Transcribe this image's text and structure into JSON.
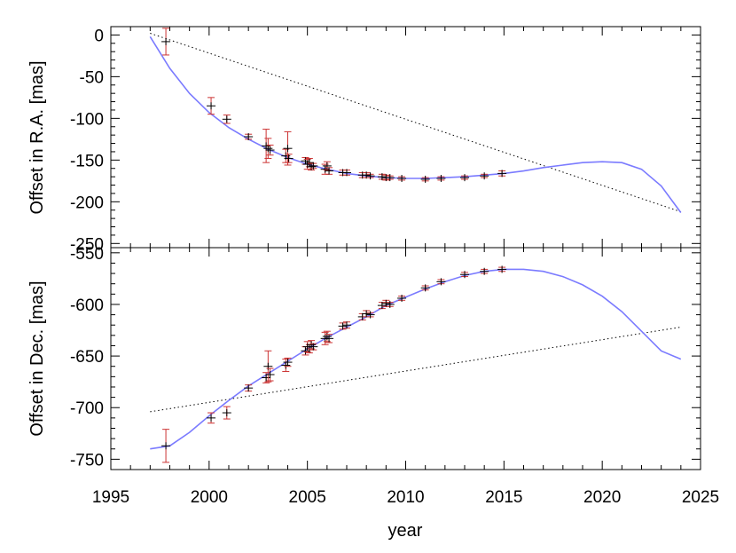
{
  "chart_data": [
    {
      "type": "scatter",
      "panel": "top",
      "title": "",
      "xlabel": "",
      "ylabel": "Offset in R.A. [mas]",
      "xlim": [
        1995,
        2025
      ],
      "ylim": [
        -255,
        10
      ],
      "yticks": [
        0,
        -50,
        -100,
        -150,
        -200,
        -250
      ],
      "ytick_labels": [
        "0",
        "-50",
        "-100",
        "-150",
        "-200",
        "-250"
      ],
      "colors": {
        "model": "#7b7bff",
        "points": "#cc3333",
        "markers": "#000000",
        "linear": "#000000"
      },
      "model_curve": {
        "x": [
          1997,
          1998,
          1999,
          2000,
          2001,
          2002,
          2003,
          2004,
          2005,
          2006,
          2007,
          2008,
          2009,
          2010,
          2011,
          2012,
          2013,
          2014,
          2015,
          2016,
          2017,
          2018,
          2019,
          2020,
          2021,
          2022,
          2023,
          2024
        ],
        "y": [
          -2,
          -40,
          -70,
          -93,
          -111,
          -125,
          -137,
          -147,
          -155,
          -161,
          -166,
          -169,
          -171,
          -172,
          -172,
          -171,
          -170,
          -168,
          -166,
          -163,
          -159,
          -156,
          -153,
          -152,
          -153,
          -161,
          -181,
          -213
        ]
      },
      "linear_trend": {
        "x": [
          1997,
          2024
        ],
        "y": [
          2,
          -212
        ]
      },
      "points": [
        {
          "x": 1997.8,
          "y": -8,
          "err": 16
        },
        {
          "x": 2000.1,
          "y": -85,
          "err": 10
        },
        {
          "x": 2000.9,
          "y": -101,
          "err": 5
        },
        {
          "x": 2002.0,
          "y": -122,
          "err": 3
        },
        {
          "x": 2002.9,
          "y": -133,
          "err": 20
        },
        {
          "x": 2003.0,
          "y": -136,
          "err": 12
        },
        {
          "x": 2003.1,
          "y": -138,
          "err": 6
        },
        {
          "x": 2003.9,
          "y": -145,
          "err": 8
        },
        {
          "x": 2004.0,
          "y": -136,
          "err": 20
        },
        {
          "x": 2004.05,
          "y": -148,
          "err": 5
        },
        {
          "x": 2004.9,
          "y": -151,
          "err": 4
        },
        {
          "x": 2005.0,
          "y": -155,
          "err": 6
        },
        {
          "x": 2005.1,
          "y": -153,
          "err": 5
        },
        {
          "x": 2005.2,
          "y": -158,
          "err": 4
        },
        {
          "x": 2005.3,
          "y": -157,
          "err": 3
        },
        {
          "x": 2005.9,
          "y": -161,
          "err": 6
        },
        {
          "x": 2006.0,
          "y": -157,
          "err": 5
        },
        {
          "x": 2006.1,
          "y": -163,
          "err": 4
        },
        {
          "x": 2006.8,
          "y": -165,
          "err": 3
        },
        {
          "x": 2007.0,
          "y": -165,
          "err": 3
        },
        {
          "x": 2007.8,
          "y": -168,
          "err": 3
        },
        {
          "x": 2008.0,
          "y": -168,
          "err": 3
        },
        {
          "x": 2008.2,
          "y": -169,
          "err": 2
        },
        {
          "x": 2008.8,
          "y": -170,
          "err": 3
        },
        {
          "x": 2009.0,
          "y": -171,
          "err": 3
        },
        {
          "x": 2009.2,
          "y": -171,
          "err": 2
        },
        {
          "x": 2009.8,
          "y": -172,
          "err": 2
        },
        {
          "x": 2011.0,
          "y": -173,
          "err": 2
        },
        {
          "x": 2011.8,
          "y": -172,
          "err": 2
        },
        {
          "x": 2013.0,
          "y": -171,
          "err": 2
        },
        {
          "x": 2014.0,
          "y": -169,
          "err": 2
        },
        {
          "x": 2014.9,
          "y": -166,
          "err": 3
        }
      ]
    },
    {
      "type": "scatter",
      "panel": "bottom",
      "title": "",
      "xlabel": "year",
      "ylabel": "Offset in Dec. [mas]",
      "xlim": [
        1995,
        2025
      ],
      "ylim": [
        -760,
        -545
      ],
      "yticks": [
        -550,
        -600,
        -650,
        -700,
        -750
      ],
      "ytick_labels": [
        "-550",
        "-600",
        "-650",
        "-700",
        "-750"
      ],
      "xticks": [
        1995,
        2000,
        2005,
        2010,
        2015,
        2020,
        2025
      ],
      "xtick_labels": [
        "1995",
        "2000",
        "2005",
        "2010",
        "2015",
        "2020",
        "2025"
      ],
      "colors": {
        "model": "#7b7bff",
        "points": "#cc3333",
        "markers": "#000000",
        "linear": "#000000"
      },
      "model_curve": {
        "x": [
          1997,
          1998,
          1999,
          2000,
          2001,
          2002,
          2003,
          2004,
          2005,
          2006,
          2007,
          2008,
          2009,
          2010,
          2011,
          2012,
          2013,
          2014,
          2015,
          2016,
          2017,
          2018,
          2019,
          2020,
          2021,
          2022,
          2023,
          2024
        ],
        "y": [
          -740,
          -737,
          -724,
          -708,
          -693,
          -679,
          -667,
          -655,
          -643,
          -632,
          -622,
          -612,
          -601,
          -593,
          -585,
          -578,
          -572,
          -568,
          -566,
          -566,
          -568,
          -573,
          -581,
          -592,
          -607,
          -626,
          -645,
          -653
        ]
      },
      "linear_trend": {
        "x": [
          1997,
          2024
        ],
        "y": [
          -704,
          -622
        ]
      },
      "points": [
        {
          "x": 1997.8,
          "y": -737,
          "err": 16
        },
        {
          "x": 2000.1,
          "y": -710,
          "err": 5
        },
        {
          "x": 2000.9,
          "y": -705,
          "err": 6
        },
        {
          "x": 2002.0,
          "y": -681,
          "err": 3
        },
        {
          "x": 2002.9,
          "y": -671,
          "err": 5
        },
        {
          "x": 2003.0,
          "y": -660,
          "err": 15
        },
        {
          "x": 2003.1,
          "y": -668,
          "err": 6
        },
        {
          "x": 2003.9,
          "y": -659,
          "err": 6
        },
        {
          "x": 2004.0,
          "y": -656,
          "err": 4
        },
        {
          "x": 2004.9,
          "y": -645,
          "err": 4
        },
        {
          "x": 2005.0,
          "y": -641,
          "err": 5
        },
        {
          "x": 2005.1,
          "y": -643,
          "err": 4
        },
        {
          "x": 2005.2,
          "y": -639,
          "err": 4
        },
        {
          "x": 2005.3,
          "y": -641,
          "err": 3
        },
        {
          "x": 2005.9,
          "y": -633,
          "err": 6
        },
        {
          "x": 2006.0,
          "y": -631,
          "err": 5
        },
        {
          "x": 2006.1,
          "y": -633,
          "err": 4
        },
        {
          "x": 2006.8,
          "y": -621,
          "err": 3
        },
        {
          "x": 2007.0,
          "y": -620,
          "err": 3
        },
        {
          "x": 2007.8,
          "y": -612,
          "err": 3
        },
        {
          "x": 2008.0,
          "y": -609,
          "err": 3
        },
        {
          "x": 2008.2,
          "y": -610,
          "err": 2
        },
        {
          "x": 2008.8,
          "y": -601,
          "err": 3
        },
        {
          "x": 2009.0,
          "y": -599,
          "err": 3
        },
        {
          "x": 2009.2,
          "y": -600,
          "err": 2
        },
        {
          "x": 2009.8,
          "y": -594,
          "err": 2
        },
        {
          "x": 2011.0,
          "y": -584,
          "err": 2
        },
        {
          "x": 2011.8,
          "y": -578,
          "err": 2
        },
        {
          "x": 2013.0,
          "y": -571,
          "err": 2
        },
        {
          "x": 2014.0,
          "y": -568,
          "err": 2
        },
        {
          "x": 2014.9,
          "y": -566,
          "err": 2
        }
      ]
    }
  ]
}
